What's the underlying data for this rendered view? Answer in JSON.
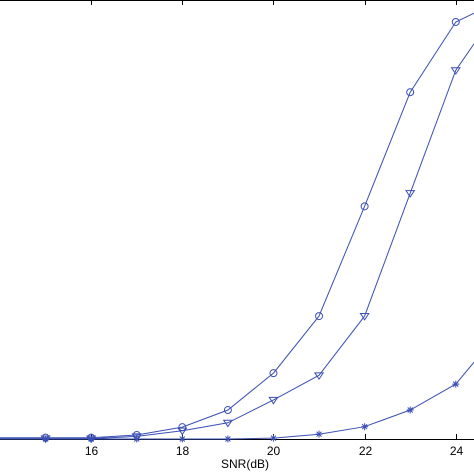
{
  "chart_data": {
    "type": "line",
    "title": "",
    "xlabel": "SNR(dB)",
    "ylabel": "",
    "xlim": [
      14,
      24.4
    ],
    "ylim": [
      0,
      1.0
    ],
    "x_ticks": [
      16,
      18,
      20,
      22,
      24
    ],
    "grid": false,
    "legend": "none",
    "line_color": "#3a4fb4",
    "series": [
      {
        "marker": "circle",
        "x": [
          14,
          15,
          16,
          17,
          18,
          19,
          20,
          21,
          22,
          23,
          24,
          24.4
        ],
        "y": [
          0.003,
          0.003,
          0.003,
          0.009,
          0.027,
          0.066,
          0.15,
          0.28,
          0.53,
          0.79,
          0.95,
          0.97
        ]
      },
      {
        "marker": "triangle-down",
        "x": [
          14,
          15,
          16,
          17,
          18,
          19,
          20,
          21,
          22,
          23,
          24,
          24.4
        ],
        "y": [
          0.001,
          0.001,
          0.001,
          0.006,
          0.019,
          0.037,
          0.089,
          0.145,
          0.28,
          0.56,
          0.84,
          0.9
        ]
      },
      {
        "marker": "star",
        "x": [
          14,
          15,
          16,
          17,
          18,
          19,
          20,
          21,
          22,
          23,
          24,
          24.4
        ],
        "y": [
          0.0,
          0.0,
          0.0,
          0.0,
          0.0,
          0.0,
          0.002,
          0.011,
          0.028,
          0.066,
          0.125,
          0.175
        ]
      }
    ]
  }
}
